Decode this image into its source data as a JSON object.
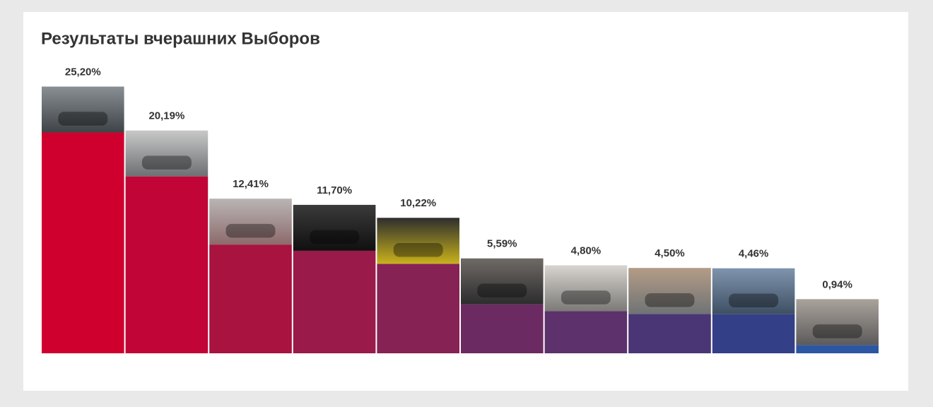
{
  "chart_data": {
    "type": "bar",
    "title": "Результаты вчерашних Выборов",
    "values": [
      25.2,
      20.19,
      12.41,
      11.7,
      10.22,
      5.59,
      4.8,
      4.5,
      4.46,
      0.94
    ],
    "value_labels": [
      "25,20%",
      "20,19%",
      "12,41%",
      "11,70%",
      "10,22%",
      "5,59%",
      "4,80%",
      "4,50%",
      "4,46%",
      "0,94%"
    ],
    "colors": [
      "#d0002e",
      "#c10637",
      "#a8133f",
      "#9a1a49",
      "#862254",
      "#6c2a62",
      "#5c316c",
      "#4a3674",
      "#333f86",
      "#2d56a2"
    ]
  }
}
